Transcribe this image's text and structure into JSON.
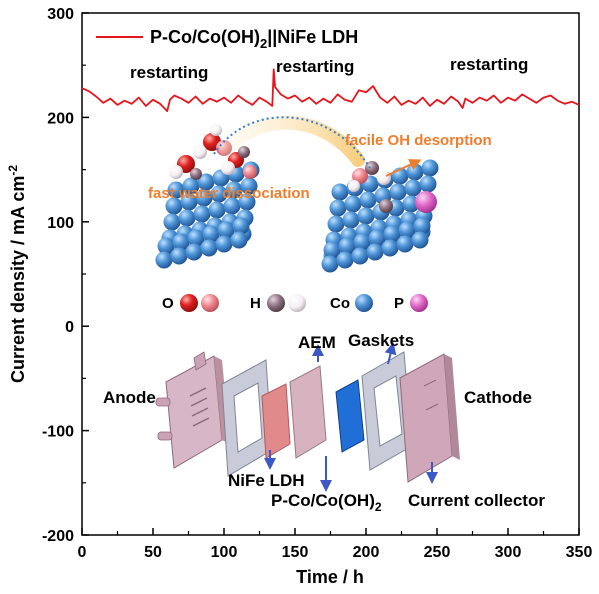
{
  "chart_data": {
    "type": "line",
    "title": "",
    "xlabel": "Time / h",
    "ylabel": "Current density / mA cm",
    "ylabel_sup": "-2",
    "xlim": [
      0,
      350
    ],
    "ylim": [
      -200,
      300
    ],
    "xticks": [
      0,
      50,
      100,
      150,
      200,
      250,
      300,
      350
    ],
    "yticks": [
      -200,
      -100,
      0,
      100,
      200,
      300
    ],
    "grid": false,
    "legend_position": "top-left",
    "series": [
      {
        "name_main": "P-Co/Co(OH)",
        "name_sub": "2",
        "name_tail": "||NiFe LDH",
        "color": "#e8141c",
        "x": [
          0,
          5,
          10,
          15,
          20,
          25,
          30,
          35,
          40,
          45,
          50,
          55,
          60,
          62,
          65,
          70,
          75,
          80,
          85,
          90,
          95,
          100,
          105,
          110,
          115,
          120,
          125,
          130,
          134,
          135,
          136,
          140,
          145,
          150,
          155,
          160,
          165,
          170,
          175,
          180,
          185,
          190,
          195,
          200,
          205,
          210,
          215,
          220,
          225,
          230,
          235,
          240,
          245,
          250,
          255,
          260,
          265,
          268,
          270,
          275,
          280,
          285,
          290,
          295,
          300,
          305,
          310,
          315,
          320,
          325,
          330,
          335,
          340,
          345,
          350
        ],
        "y": [
          228,
          225,
          220,
          214,
          218,
          212,
          216,
          213,
          219,
          211,
          217,
          213,
          206,
          217,
          221,
          218,
          214,
          220,
          213,
          218,
          215,
          219,
          214,
          221,
          216,
          212,
          219,
          215,
          211,
          246,
          229,
          222,
          218,
          221,
          215,
          219,
          213,
          218,
          214,
          222,
          217,
          215,
          226,
          224,
          230,
          219,
          214,
          220,
          212,
          216,
          213,
          219,
          211,
          217,
          213,
          220,
          215,
          209,
          218,
          214,
          219,
          216,
          221,
          214,
          219,
          216,
          222,
          218,
          214,
          219,
          221,
          216,
          213,
          215,
          212
        ]
      }
    ],
    "annotations": [
      "restarting",
      "restarting",
      "restarting"
    ]
  },
  "inset_top": {
    "labels": [
      "facile OH desorption",
      "fast water dissociation"
    ],
    "legend": [
      {
        "symbol": "O",
        "colors": [
          "#d91e1e",
          "#f0848c"
        ]
      },
      {
        "symbol": "H",
        "colors": [
          "#7a6470",
          "#ffffff"
        ]
      },
      {
        "symbol": "Co",
        "colors": [
          "#3b82c8"
        ]
      },
      {
        "symbol": "P",
        "colors": [
          "#e066c8"
        ]
      }
    ]
  },
  "inset_bottom": {
    "labels": {
      "anode": "Anode",
      "cathode": "Cathode",
      "aem": "AEM",
      "gaskets": "Gaskets",
      "nife": "NiFe LDH",
      "pco_main": "P-Co/Co(OH)",
      "pco_sub": "2",
      "collector": "Current collector"
    }
  }
}
